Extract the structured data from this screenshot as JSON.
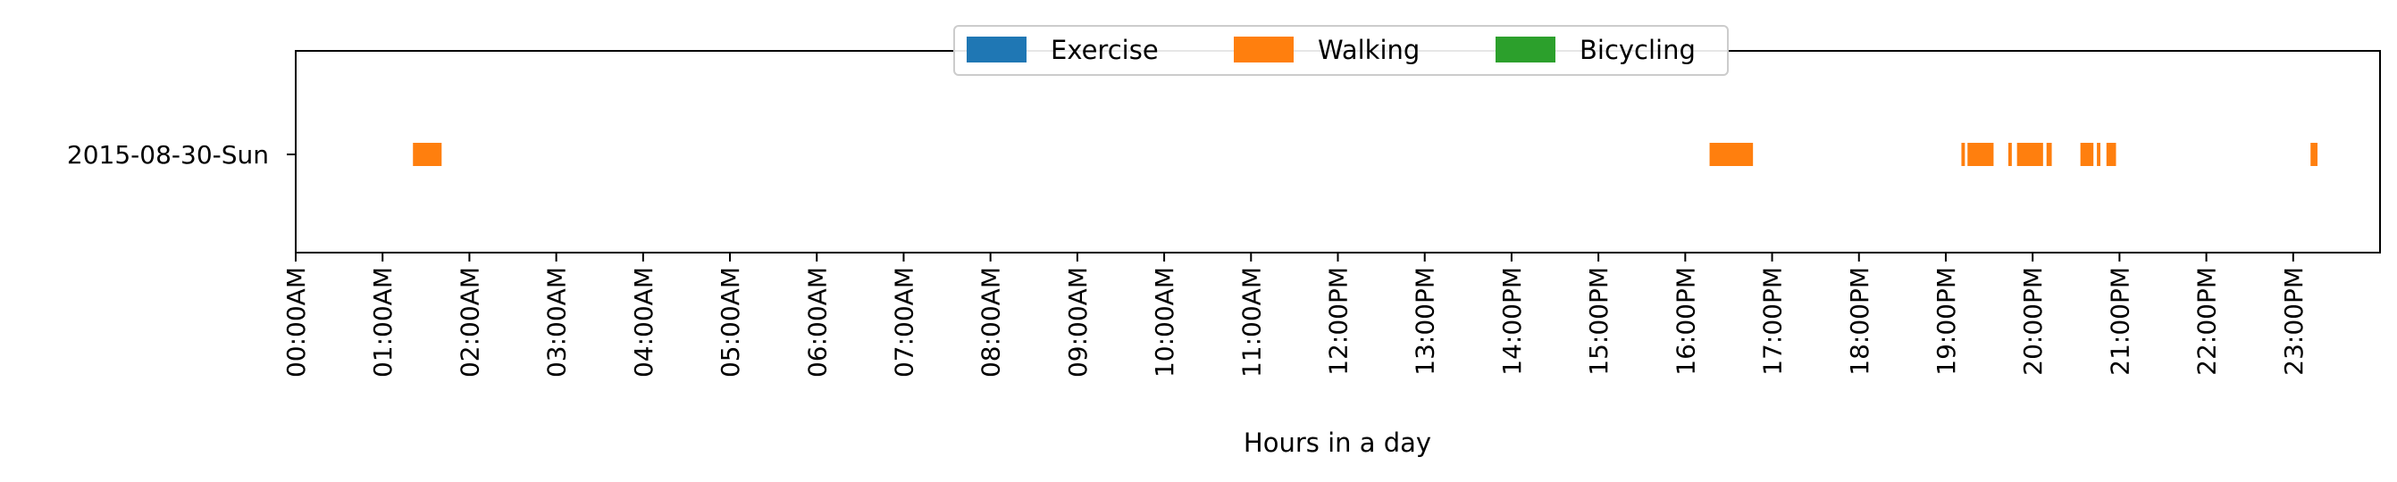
{
  "chart_data": {
    "type": "timeline",
    "xlabel": "Hours in a day",
    "xlim": [
      0,
      24
    ],
    "x_ticks": [
      0,
      1,
      2,
      3,
      4,
      5,
      6,
      7,
      8,
      9,
      10,
      11,
      12,
      13,
      14,
      15,
      16,
      17,
      18,
      19,
      20,
      21,
      22,
      23
    ],
    "x_tick_labels": [
      "00:00AM",
      "01:00AM",
      "02:00AM",
      "03:00AM",
      "04:00AM",
      "05:00AM",
      "06:00AM",
      "07:00AM",
      "08:00AM",
      "09:00AM",
      "10:00AM",
      "11:00AM",
      "12:00PM",
      "13:00PM",
      "14:00PM",
      "15:00PM",
      "16:00PM",
      "17:00PM",
      "18:00PM",
      "19:00PM",
      "20:00PM",
      "21:00PM",
      "22:00PM",
      "23:00PM"
    ],
    "categories": [
      "2015-08-30-Sun"
    ],
    "grid": false,
    "legend": {
      "placement": "top-center",
      "orientation": "horizontal"
    },
    "series": [
      {
        "name": "Exercise",
        "color": "#1f77b4",
        "intervals": []
      },
      {
        "name": "Walking",
        "color": "#ff7f0e",
        "intervals": [
          [
            1.35,
            1.68
          ],
          [
            16.28,
            16.78
          ],
          [
            19.18,
            19.22
          ],
          [
            19.25,
            19.55
          ],
          [
            19.72,
            19.76
          ],
          [
            19.82,
            20.12
          ],
          [
            20.16,
            20.22
          ],
          [
            20.55,
            20.7
          ],
          [
            20.74,
            20.78
          ],
          [
            20.85,
            20.96
          ],
          [
            23.2,
            23.28
          ]
        ]
      },
      {
        "name": "Bicycling",
        "color": "#2ca02c",
        "intervals": []
      }
    ]
  }
}
